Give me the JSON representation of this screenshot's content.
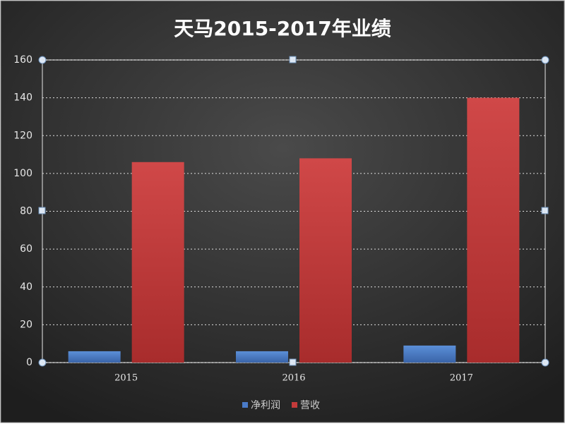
{
  "chart_data": {
    "type": "bar",
    "title": "天马2015-2017年业绩",
    "categories": [
      "2015",
      "2016",
      "2017"
    ],
    "series": [
      {
        "name": "净利润",
        "color": "#4a7bc8",
        "values": [
          6,
          6,
          9
        ]
      },
      {
        "name": "营收",
        "color": "#c43a3a",
        "values": [
          106,
          108,
          140
        ]
      }
    ],
    "ylim": [
      0,
      160
    ],
    "yticks": [
      0,
      20,
      40,
      60,
      80,
      100,
      120,
      140,
      160
    ],
    "grid": true,
    "legend": "bottom"
  }
}
